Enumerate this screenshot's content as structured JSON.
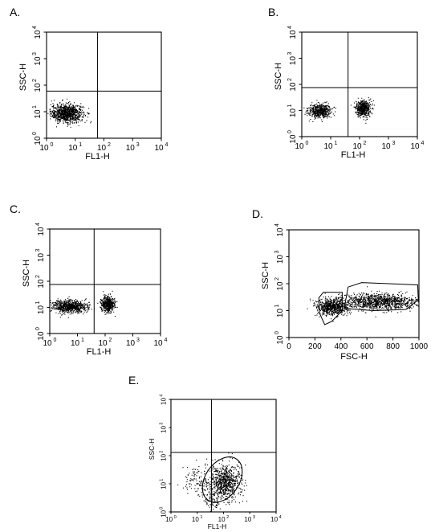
{
  "chart_data": [
    {
      "panel": "A.",
      "type": "scatter",
      "xlabel": "FL1-H",
      "ylabel": "SSC-H",
      "xscale": "log",
      "yscale": "log",
      "xlim": [
        1,
        10000
      ],
      "ylim": [
        1,
        10000
      ],
      "xticks": [
        {
          "base": "10",
          "exp": "0"
        },
        {
          "base": "10",
          "exp": "1"
        },
        {
          "base": "10",
          "exp": "2"
        },
        {
          "base": "10",
          "exp": "3"
        },
        {
          "base": "10",
          "exp": "4"
        }
      ],
      "yticks": [
        {
          "base": "10",
          "exp": "0"
        },
        {
          "base": "10",
          "exp": "1"
        },
        {
          "base": "10",
          "exp": "2"
        },
        {
          "base": "10",
          "exp": "3"
        },
        {
          "base": "10",
          "exp": "4"
        }
      ],
      "quadrant_x": 60,
      "quadrant_y": 60,
      "clusters": [
        {
          "x": 5,
          "y": 9,
          "sx": 0.28,
          "sy": 0.17,
          "n": 950
        }
      ],
      "gates": []
    },
    {
      "panel": "B.",
      "type": "scatter",
      "xlabel": "FL1-H",
      "ylabel": "SSC-H",
      "xscale": "log",
      "yscale": "log",
      "xlim": [
        1,
        10000
      ],
      "ylim": [
        1,
        10000
      ],
      "xticks": [
        {
          "base": "10",
          "exp": "0"
        },
        {
          "base": "10",
          "exp": "1"
        },
        {
          "base": "10",
          "exp": "2"
        },
        {
          "base": "10",
          "exp": "3"
        },
        {
          "base": "10",
          "exp": "4"
        }
      ],
      "yticks": [
        {
          "base": "10",
          "exp": "0"
        },
        {
          "base": "10",
          "exp": "1"
        },
        {
          "base": "10",
          "exp": "2"
        },
        {
          "base": "10",
          "exp": "3"
        },
        {
          "base": "10",
          "exp": "4"
        }
      ],
      "quadrant_x": 40,
      "quadrant_y": 75,
      "clusters": [
        {
          "x": 4,
          "y": 10,
          "sx": 0.2,
          "sy": 0.13,
          "n": 550
        },
        {
          "x": 130,
          "y": 12,
          "sx": 0.13,
          "sy": 0.15,
          "n": 550
        }
      ],
      "gates": []
    },
    {
      "panel": "C.",
      "type": "scatter",
      "xlabel": "FL1-H",
      "ylabel": "SSC-H",
      "xscale": "log",
      "yscale": "log",
      "xlim": [
        1,
        10000
      ],
      "ylim": [
        1,
        10000
      ],
      "xticks": [
        {
          "base": "10",
          "exp": "0"
        },
        {
          "base": "10",
          "exp": "1"
        },
        {
          "base": "10",
          "exp": "2"
        },
        {
          "base": "10",
          "exp": "3"
        },
        {
          "base": "10",
          "exp": "4"
        }
      ],
      "yticks": [
        {
          "base": "10",
          "exp": "0"
        },
        {
          "base": "10",
          "exp": "1"
        },
        {
          "base": "10",
          "exp": "2"
        },
        {
          "base": "10",
          "exp": "3"
        },
        {
          "base": "10",
          "exp": "4"
        }
      ],
      "quadrant_x": 40,
      "quadrant_y": 75,
      "clusters": [
        {
          "x": 5,
          "y": 11,
          "sx": 0.32,
          "sy": 0.12,
          "n": 800
        },
        {
          "x": 120,
          "y": 14,
          "sx": 0.12,
          "sy": 0.15,
          "n": 520
        }
      ],
      "gates": []
    },
    {
      "panel": "D.",
      "type": "scatter",
      "xlabel": "FSC-H",
      "ylabel": "SSC-H",
      "xscale": "linear",
      "yscale": "log",
      "xlim": [
        0,
        1000
      ],
      "ylim": [
        1,
        10000
      ],
      "xticks": [
        {
          "base": "0"
        },
        {
          "base": "200"
        },
        {
          "base": "400"
        },
        {
          "base": "600"
        },
        {
          "base": "800"
        },
        {
          "base": "1000"
        }
      ],
      "yticks": [
        {
          "base": "10",
          "exp": "0"
        },
        {
          "base": "10",
          "exp": "1"
        },
        {
          "base": "10",
          "exp": "2"
        },
        {
          "base": "10",
          "exp": "3"
        },
        {
          "base": "10",
          "exp": "4"
        }
      ],
      "clusters": [
        {
          "x": 330,
          "y": 14,
          "sx": 60,
          "sy": 0.16,
          "n": 700
        },
        {
          "x": 700,
          "y": 22,
          "sx": 150,
          "sy": 0.15,
          "n": 1100
        }
      ],
      "gates": [
        {
          "shape": "polygon",
          "points": [
            [
              235,
              8
            ],
            [
              230,
              30
            ],
            [
              265,
              48
            ],
            [
              410,
              48
            ],
            [
              410,
              10
            ],
            [
              330,
              4
            ],
            [
              275,
              3
            ]
          ]
        },
        {
          "shape": "polygon",
          "points": [
            [
              425,
              12
            ],
            [
              455,
              75
            ],
            [
              560,
              110
            ],
            [
              990,
              90
            ],
            [
              995,
              25
            ],
            [
              900,
              11
            ],
            [
              650,
              10
            ]
          ]
        }
      ]
    },
    {
      "panel": "E.",
      "type": "scatter",
      "xlabel": "FL1-H",
      "ylabel": "SSC-H",
      "xscale": "log",
      "yscale": "log",
      "xlim": [
        1,
        10000
      ],
      "ylim": [
        1,
        10000
      ],
      "xticks": [
        {
          "base": "10",
          "exp": "0"
        },
        {
          "base": "10",
          "exp": "1"
        },
        {
          "base": "10",
          "exp": "2"
        },
        {
          "base": "10",
          "exp": "3"
        },
        {
          "base": "10",
          "exp": "4"
        }
      ],
      "yticks": [
        {
          "base": "10",
          "exp": "0"
        },
        {
          "base": "10",
          "exp": "1"
        },
        {
          "base": "10",
          "exp": "2"
        },
        {
          "base": "10",
          "exp": "3"
        },
        {
          "base": "10",
          "exp": "4"
        }
      ],
      "quadrant_x": 35,
      "quadrant_y": 130,
      "clusters": [
        {
          "x": 110,
          "y": 12,
          "sx": 0.28,
          "sy": 0.32,
          "n": 750
        },
        {
          "x": 10,
          "y": 15,
          "sx": 0.3,
          "sy": 0.28,
          "n": 120
        },
        {
          "x": 35,
          "y": 3,
          "sx": 0.18,
          "sy": 0.2,
          "n": 100
        }
      ],
      "gates": [
        {
          "shape": "ellipse",
          "cx": 90,
          "cy": 14,
          "rx_decades": 0.95,
          "ry_decades": 0.6,
          "rotation_deg": -55
        }
      ]
    }
  ]
}
